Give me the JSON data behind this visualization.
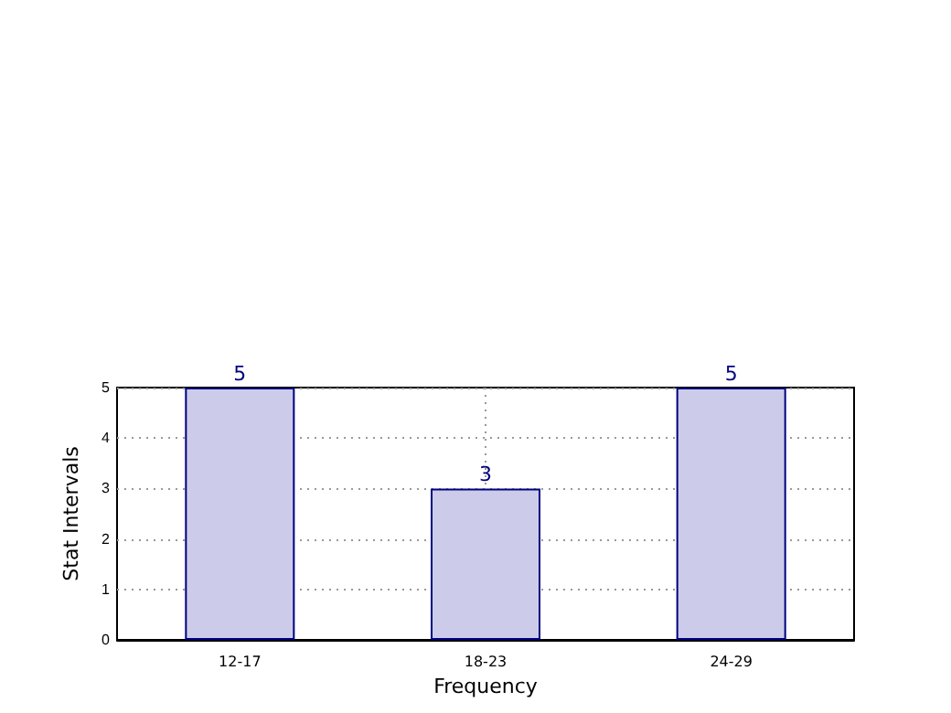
{
  "chart_data": {
    "type": "bar",
    "xlabel": "Frequency",
    "ylabel": "Stat Intervals",
    "categories": [
      "12-17",
      "18-23",
      "24-29"
    ],
    "series": [
      {
        "color": "#ccccea",
        "values": [
          5,
          3,
          5
        ]
      }
    ],
    "ylim": [
      0,
      5
    ],
    "yticks": [
      0,
      1,
      2,
      3,
      4,
      5
    ],
    "grid": true,
    "data_labels": true
  }
}
